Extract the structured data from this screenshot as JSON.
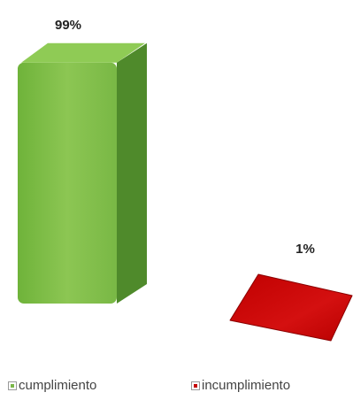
{
  "chart_data": {
    "type": "bar",
    "categories": [
      "cumplimiento",
      "incumplimiento"
    ],
    "values": [
      99,
      1
    ],
    "data_labels": [
      "99%",
      "1%"
    ],
    "colors": [
      "#7ab648",
      "#c40000"
    ],
    "legend": {
      "position": "bottom",
      "entries": [
        "cumplimiento",
        "incumplimiento"
      ]
    },
    "ylim": [
      0,
      100
    ],
    "grid": false
  }
}
